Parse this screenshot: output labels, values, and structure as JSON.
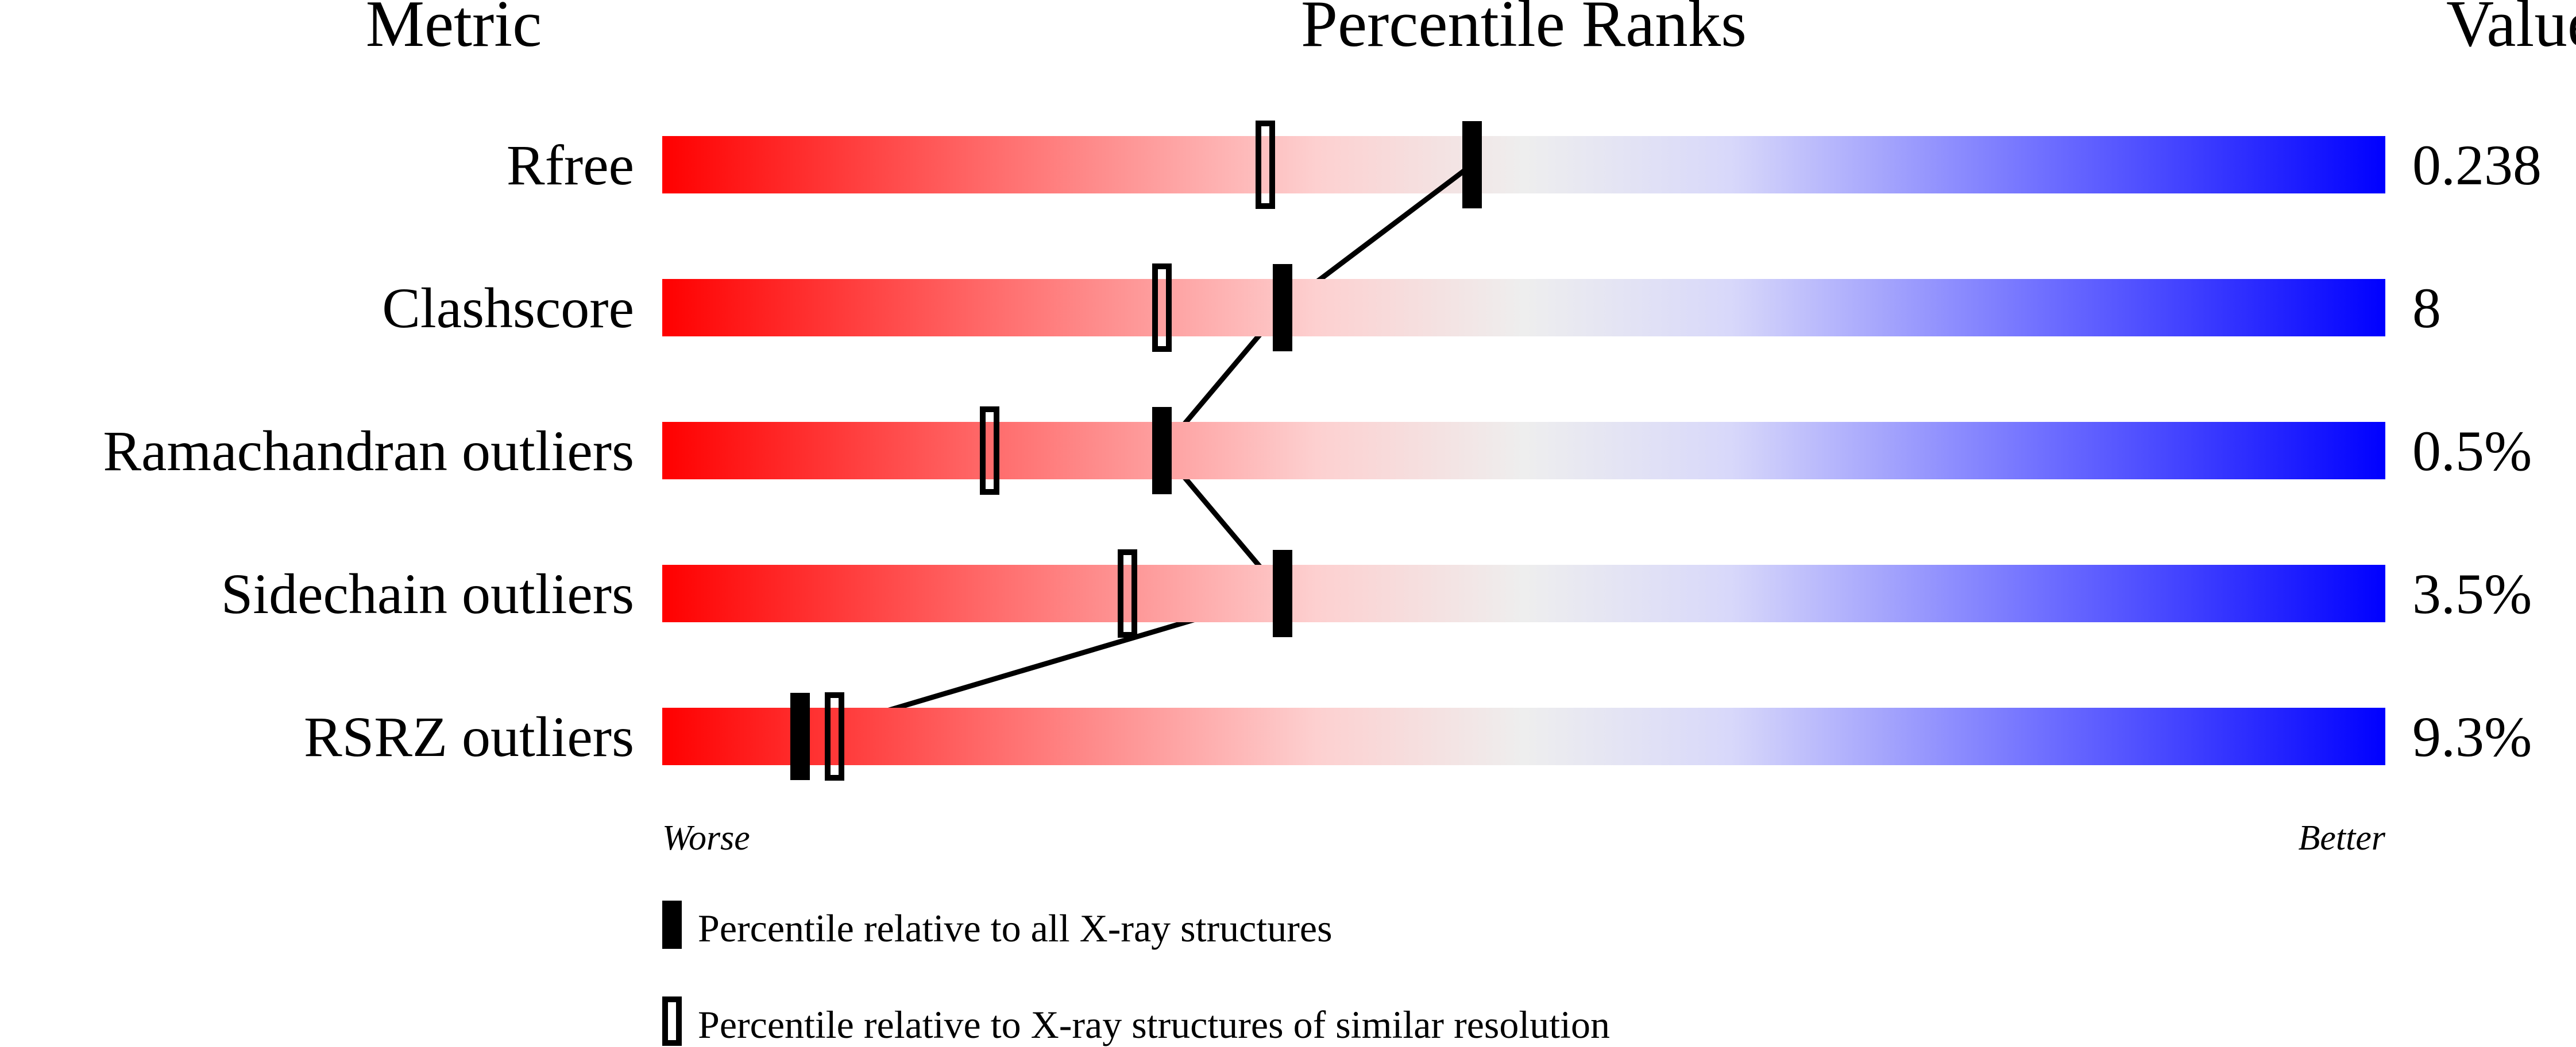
{
  "chart_data": {
    "type": "percentile-bars",
    "headers": {
      "metric": "Metric",
      "ranks": "Percentile Ranks",
      "value": "Value"
    },
    "axis": {
      "left": "Worse",
      "right": "Better",
      "range": [
        0,
        100
      ]
    },
    "gradient_colors": {
      "worse": "#ff0000",
      "middle": "#eeeeee",
      "better": "#0000ff"
    },
    "rows": [
      {
        "metric": "Rfree",
        "value": "0.238",
        "percentile_all": 47,
        "percentile_similar": 35
      },
      {
        "metric": "Clashscore",
        "value": "8",
        "percentile_all": 36,
        "percentile_similar": 29
      },
      {
        "metric": "Ramachandran outliers",
        "value": "0.5%",
        "percentile_all": 29,
        "percentile_similar": 19
      },
      {
        "metric": "Sidechain outliers",
        "value": "3.5%",
        "percentile_all": 36,
        "percentile_similar": 27
      },
      {
        "metric": "RSRZ outliers",
        "value": "9.3%",
        "percentile_all": 8,
        "percentile_similar": 10
      }
    ],
    "legend": [
      {
        "marker": "filled",
        "label": "Percentile relative to all X-ray structures"
      },
      {
        "marker": "open",
        "label": "Percentile relative to X-ray structures of similar resolution"
      }
    ]
  }
}
